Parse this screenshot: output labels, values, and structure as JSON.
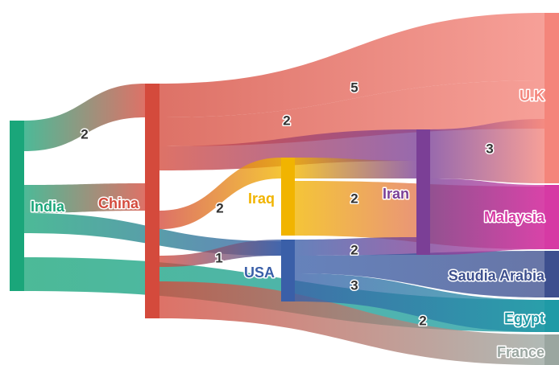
{
  "chart_data": {
    "type": "sankey",
    "nodes": [
      {
        "id": "India",
        "color": "#1aa67a"
      },
      {
        "id": "China",
        "color": "#d44a3c"
      },
      {
        "id": "Iraq",
        "color": "#f1b400"
      },
      {
        "id": "USA",
        "color": "#3a5fa8"
      },
      {
        "id": "Iran",
        "color": "#7b3f96"
      },
      {
        "id": "U.K",
        "color": "#f4857b"
      },
      {
        "id": "Malaysia",
        "color": "#d63aa4"
      },
      {
        "id": "Saudia Arabia",
        "color": "#3d4f8e"
      },
      {
        "id": "Egypt",
        "color": "#1f9aa6"
      },
      {
        "id": "France",
        "color": "#9aa6a0"
      }
    ],
    "links": [
      {
        "source": "India",
        "target": "China",
        "value": 2,
        "label": "2"
      },
      {
        "source": "India",
        "target": "China",
        "value": 2
      },
      {
        "source": "India",
        "target": "USA",
        "value": 1
      },
      {
        "source": "India",
        "target": "Egypt",
        "value": 2
      },
      {
        "source": "China",
        "target": "U.K",
        "value": 5,
        "label": "5"
      },
      {
        "source": "China",
        "target": "U.K",
        "value": 2,
        "label": "2"
      },
      {
        "source": "China",
        "target": "Iran",
        "value": 2
      },
      {
        "source": "China",
        "target": "Iraq",
        "value": 2,
        "label": "2"
      },
      {
        "source": "China",
        "target": "USA",
        "value": 1,
        "label": "1"
      },
      {
        "source": "China",
        "target": "France",
        "value": 2,
        "label": "2"
      },
      {
        "source": "Iraq",
        "target": "Iran",
        "value": 1
      },
      {
        "source": "Iraq",
        "target": "Malaysia",
        "value": 2,
        "label": "2"
      },
      {
        "source": "USA",
        "target": "Iran",
        "value": 1
      },
      {
        "source": "USA",
        "target": "Saudia Arabia",
        "value": 2,
        "label": "2"
      },
      {
        "source": "USA",
        "target": "Egypt",
        "value": 3,
        "label": "3"
      },
      {
        "source": "Iran",
        "target": "U.K",
        "value": 3,
        "label": "3"
      },
      {
        "source": "Iran",
        "target": "Malaysia",
        "value": 1
      }
    ]
  }
}
